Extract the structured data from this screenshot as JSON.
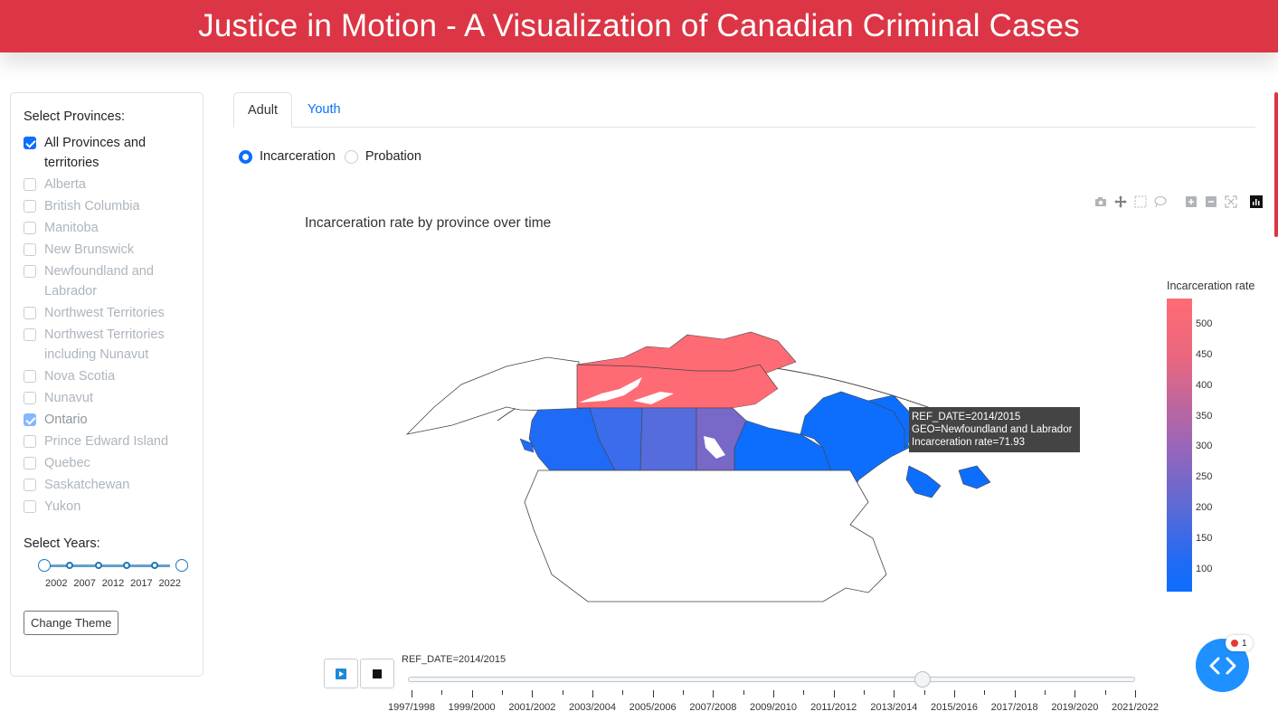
{
  "header": {
    "title": "Justice in Motion - A Visualization of Canadian Criminal Cases"
  },
  "sidebar": {
    "provinces_label": "Select Provinces:",
    "provinces": [
      {
        "label": "All Provinces and territories",
        "checked": true,
        "enabled": true
      },
      {
        "label": "Alberta",
        "checked": false,
        "enabled": false
      },
      {
        "label": "British Columbia",
        "checked": false,
        "enabled": false
      },
      {
        "label": "Manitoba",
        "checked": false,
        "enabled": false
      },
      {
        "label": "New Brunswick",
        "checked": false,
        "enabled": false
      },
      {
        "label": "Newfoundland and Labrador",
        "checked": false,
        "enabled": false
      },
      {
        "label": "Northwest Territories",
        "checked": false,
        "enabled": false
      },
      {
        "label": "Northwest Territories including Nunavut",
        "checked": false,
        "enabled": false
      },
      {
        "label": "Nova Scotia",
        "checked": false,
        "enabled": false
      },
      {
        "label": "Nunavut",
        "checked": false,
        "enabled": false
      },
      {
        "label": "Ontario",
        "checked": true,
        "enabled": false
      },
      {
        "label": "Prince Edward Island",
        "checked": false,
        "enabled": false
      },
      {
        "label": "Quebec",
        "checked": false,
        "enabled": false
      },
      {
        "label": "Saskatchewan",
        "checked": false,
        "enabled": false
      },
      {
        "label": "Yukon",
        "checked": false,
        "enabled": false
      }
    ],
    "years_label": "Select Years:",
    "year_marks": [
      "2002",
      "2007",
      "2012",
      "2017",
      "2022"
    ],
    "theme_button": "Change Theme"
  },
  "tabs": [
    {
      "label": "Adult",
      "active": true
    },
    {
      "label": "Youth",
      "active": false
    }
  ],
  "radios": [
    {
      "label": "Incarceration",
      "selected": true
    },
    {
      "label": "Probation",
      "selected": false
    }
  ],
  "modebar_icons": [
    "camera-icon",
    "pan-icon",
    "box-select-icon",
    "lasso-icon",
    "zoom-in-icon",
    "zoom-out-icon",
    "autoscale-icon",
    "plotly-logo-icon"
  ],
  "chart": {
    "title": "Incarceration rate by province over time",
    "colorbar_title": "Incarceration rate",
    "colorbar_ticks": [
      "500",
      "450",
      "400",
      "350",
      "300",
      "250",
      "200",
      "150",
      "100"
    ],
    "colors": {
      "high": "#ff6b74",
      "mid": "#9a66b8",
      "low": "#0d6efd"
    },
    "tooltip": {
      "line1": "REF_DATE=2014/2015",
      "line2": "GEO=Newfoundland and Labrador",
      "line3": "Incarceration rate=71.93"
    }
  },
  "animation": {
    "current_label": "REF_DATE=2014/2015",
    "play_icon": "play-icon",
    "stop_icon": "stop-icon",
    "frame_labels": [
      "1997/1998",
      "1999/2000",
      "2001/2002",
      "2003/2004",
      "2005/2006",
      "2007/2008",
      "2009/2010",
      "2011/2012",
      "2013/2014",
      "2015/2016",
      "2017/2018",
      "2019/2020",
      "2021/2022"
    ],
    "current_index": 17,
    "total_frames": 25
  },
  "fab": {
    "badge_count": "1"
  }
}
